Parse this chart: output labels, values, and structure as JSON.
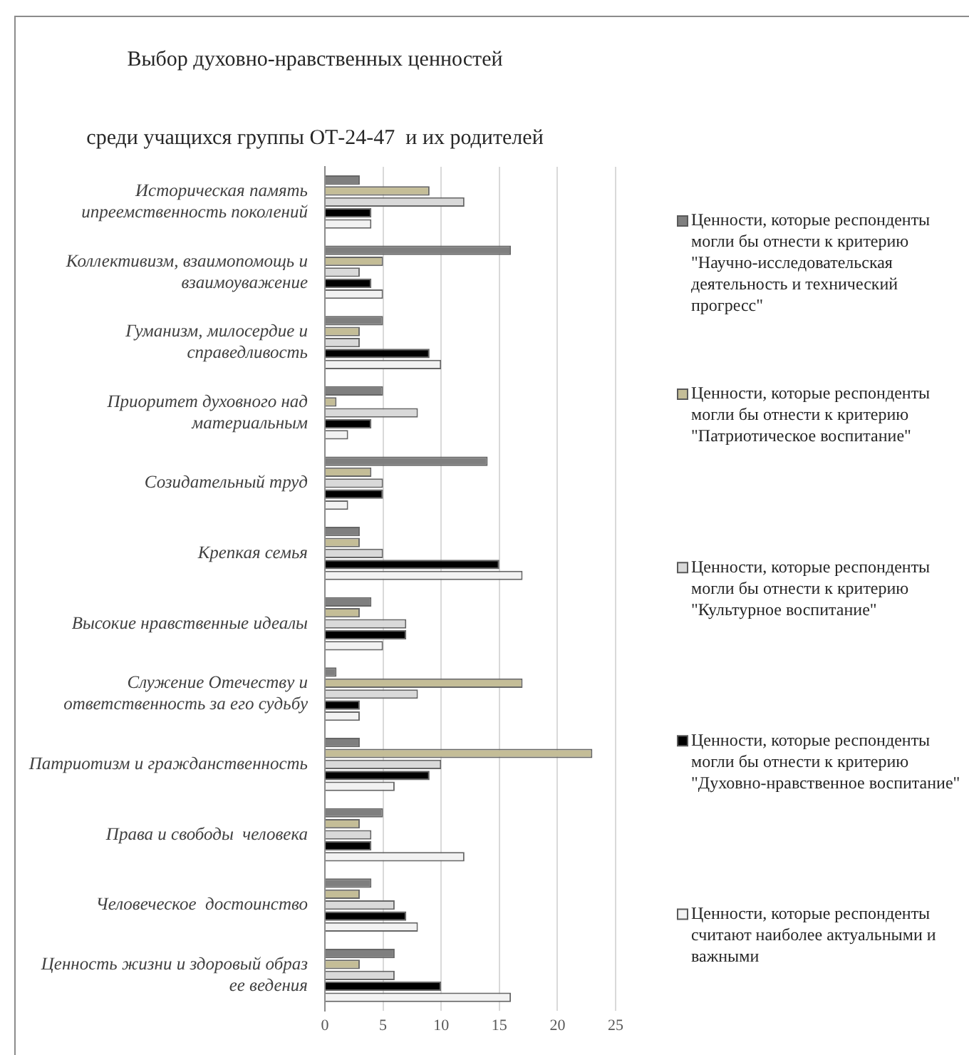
{
  "chart_data": {
    "type": "bar",
    "orientation": "horizontal",
    "title": "Выбор духовно-нравственных ценностей",
    "subtitle": "среди учащихся группы ОТ-24-47  и их родителей",
    "categories": [
      "Историческая память ипреемственность поколений",
      "Коллективизм, взаимопомощь и взаимоуважение",
      "Гуманизм, милосердие и справедливость",
      "Приоритет духовного над материальным",
      "Созидательный труд",
      "Крепкая семья",
      "Высокие нравственные идеалы",
      "Служение Отечеству и ответственность за его судьбу",
      "Патриотизм и гражданственность",
      "Права и свободы  человека",
      "Человеческое  достоинство",
      "Ценность жизни и здоровый образ ее ведения"
    ],
    "series": [
      {
        "name": "Ценности, которые респонденты могли бы отнести к критерию \"Научно-исследовательская деятельность и технический прогресс\"",
        "color": "#7f7f7f",
        "values": [
          3,
          16,
          5,
          5,
          14,
          3,
          4,
          1,
          3,
          5,
          4,
          6
        ]
      },
      {
        "name": "Ценности, которые респонденты могли бы отнести к критерию \"Патриотическое воспитание\"",
        "color": "#c4bd97",
        "values": [
          9,
          5,
          3,
          1,
          4,
          3,
          3,
          17,
          23,
          3,
          3,
          3
        ]
      },
      {
        "name": "Ценности, которые респонденты могли бы отнести к критерию \"Культурное воспитание\"",
        "color": "#d9d9d9",
        "values": [
          12,
          3,
          3,
          8,
          5,
          5,
          7,
          8,
          10,
          4,
          6,
          6
        ]
      },
      {
        "name": "Ценности, которые респонденты могли бы отнести к критерию \"Духовно-нравственное воспитание\"",
        "color": "#000000",
        "values": [
          4,
          4,
          9,
          4,
          5,
          15,
          7,
          3,
          9,
          4,
          7,
          10
        ]
      },
      {
        "name": "Ценности, которые респонденты считают наиболее актуальными и важными",
        "color": "#f2f2f2",
        "values": [
          4,
          5,
          10,
          2,
          2,
          17,
          5,
          3,
          6,
          12,
          8,
          16
        ]
      }
    ],
    "xlim": [
      0,
      25
    ],
    "xticks": [
      0,
      5,
      10,
      15,
      20,
      25
    ],
    "grid": "x",
    "legend": "right"
  }
}
